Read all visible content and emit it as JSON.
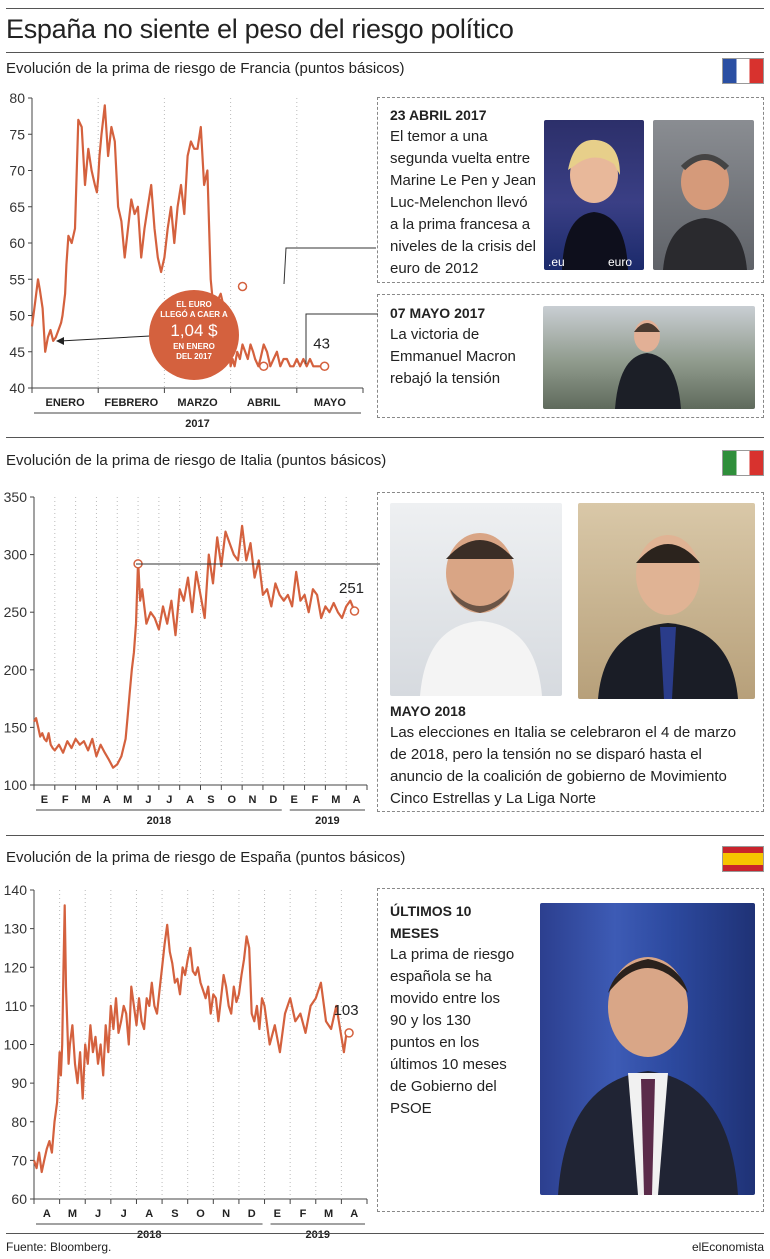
{
  "title": "España no siente el peso del riesgo político",
  "sections": [
    {
      "subtitle": "Evolución de la prima de riesgo de Francia (puntos básicos)",
      "country": "Francia",
      "annotations": [
        {
          "heading": "23 ABRIL 2017",
          "text": "El temor a una segunda vuelta entre Marine Le Pen y Jean Luc-Melenchon llevó a la prima francesa a niveles de la crisis del euro de 2012"
        },
        {
          "heading": "07 MAYO 2017",
          "text": "La victoria de Emmanuel Macron rebajó la tensión"
        }
      ],
      "callout": {
        "line1": "EL EURO",
        "line2": "LLEGÓ A CAER A",
        "value": "1,04 $",
        "line3": "EN ENERO",
        "line4": "DEL 2017"
      }
    },
    {
      "subtitle": "Evolución de la prima de riesgo de Italia (puntos  básicos)",
      "country": "Italia",
      "annotations": [
        {
          "heading": "MAYO 2018",
          "text": "Las elecciones en Italia se celebraron el 4 de marzo de 2018, pero la tensión no se disparó hasta el anuncio de la coalición de gobierno de Movimiento Cinco Estrellas y La Liga Norte"
        }
      ]
    },
    {
      "subtitle": "Evolución de la prima de riesgo de España (puntos básicos)",
      "country": "España",
      "annotations": [
        {
          "heading": "ÚLTIMOS 10 MESES",
          "text": "La prima de riesgo española se ha movido entre los 90 y los 130 puntos en los últimos 10 meses de Gobierno del PSOE"
        }
      ]
    }
  ],
  "chart_data": [
    {
      "type": "line",
      "title": "Evolución de la prima de riesgo de Francia (puntos básicos)",
      "ylim": [
        40,
        80
      ],
      "yticks": [
        40,
        45,
        50,
        55,
        60,
        65,
        70,
        75,
        80
      ],
      "xticks": [
        "ENERO",
        "FEBRERO",
        "MARZO",
        "ABRIL",
        "MAYO"
      ],
      "year_labels": [
        "2017"
      ],
      "last_value_label": "43",
      "series": [
        {
          "name": "Francia",
          "x": [
            0.0,
            0.05,
            0.09,
            0.12,
            0.16,
            0.2,
            0.24,
            0.28,
            0.32,
            0.36,
            0.4,
            0.44,
            0.46,
            0.5,
            0.52,
            0.55,
            0.6,
            0.65,
            0.7,
            0.75,
            0.8,
            0.85,
            0.9,
            0.95,
            0.98,
            1.0,
            1.02,
            1.05,
            1.1,
            1.15,
            1.2,
            1.25,
            1.3,
            1.35,
            1.4,
            1.45,
            1.5,
            1.55,
            1.6,
            1.65,
            1.7,
            1.75,
            1.8,
            1.85,
            1.9,
            1.95,
            2.0,
            2.05,
            2.1,
            2.15,
            2.2,
            2.25,
            2.3,
            2.35,
            2.4,
            2.45,
            2.5,
            2.55,
            2.6,
            2.65,
            2.7,
            2.75,
            2.8,
            2.85,
            2.9,
            2.95,
            3.0,
            3.03,
            3.06,
            3.1,
            3.14,
            3.18,
            3.22,
            3.26,
            3.3,
            3.34,
            3.37,
            3.42,
            3.45,
            3.5,
            3.55,
            3.6,
            3.65,
            3.7,
            3.75,
            3.8,
            3.85,
            3.9,
            3.95,
            4.0,
            4.05,
            4.1,
            4.15,
            4.2,
            4.25,
            4.3,
            4.35,
            4.42
          ],
          "values": [
            48.5,
            52,
            55,
            53.5,
            51,
            45,
            47,
            48,
            46.5,
            47,
            48,
            49,
            50,
            53,
            57,
            61,
            60,
            62,
            77,
            76,
            68,
            73,
            70,
            68,
            67,
            69,
            72,
            75,
            79,
            72,
            76,
            74,
            65,
            63,
            58,
            62,
            66,
            64,
            65,
            58,
            62,
            65,
            68,
            62,
            58,
            56,
            58,
            62,
            65,
            60,
            65,
            68,
            64,
            72,
            74,
            73,
            73,
            76,
            68,
            70,
            55,
            50,
            52,
            53,
            51,
            48,
            43,
            44,
            43,
            45,
            44,
            46,
            45,
            44,
            46,
            45,
            44,
            43,
            44,
            46,
            45,
            43,
            44,
            45,
            43,
            44,
            44,
            43,
            43,
            44,
            43,
            44,
            43,
            44,
            43,
            43,
            43,
            43
          ]
        }
      ]
    },
    {
      "type": "line",
      "title": "Evolución de la prima de riesgo de Italia (puntos  básicos)",
      "ylim": [
        100,
        350
      ],
      "yticks": [
        100,
        150,
        200,
        250,
        300,
        350
      ],
      "xticks": [
        "E",
        "F",
        "M",
        "A",
        "M",
        "J",
        "J",
        "A",
        "S",
        "O",
        "N",
        "D",
        "E",
        "F",
        "M",
        "A"
      ],
      "year_labels": [
        "2018",
        "2019"
      ],
      "last_value_label": "251",
      "series": [
        {
          "name": "Italia",
          "x": [
            0.0,
            0.1,
            0.2,
            0.3,
            0.4,
            0.5,
            0.6,
            0.7,
            0.8,
            0.9,
            1.0,
            1.2,
            1.4,
            1.6,
            1.8,
            2.0,
            2.2,
            2.4,
            2.6,
            2.8,
            3.0,
            3.2,
            3.4,
            3.6,
            3.8,
            4.0,
            4.2,
            4.4,
            4.5,
            4.6,
            4.7,
            4.8,
            4.9,
            5.0,
            5.1,
            5.2,
            5.4,
            5.6,
            5.8,
            6.0,
            6.2,
            6.4,
            6.6,
            6.8,
            7.0,
            7.2,
            7.4,
            7.6,
            7.8,
            8.0,
            8.2,
            8.4,
            8.6,
            8.8,
            9.0,
            9.2,
            9.4,
            9.6,
            9.8,
            10.0,
            10.2,
            10.4,
            10.6,
            10.8,
            11.0,
            11.2,
            11.4,
            11.6,
            11.8,
            12.0,
            12.2,
            12.4,
            12.6,
            12.8,
            13.0,
            13.2,
            13.4,
            13.6,
            13.8,
            14.0,
            14.2,
            14.4,
            14.6,
            14.8,
            15.0,
            15.2,
            15.4
          ],
          "values": [
            155,
            158,
            150,
            142,
            145,
            140,
            138,
            145,
            135,
            132,
            130,
            135,
            128,
            138,
            132,
            140,
            135,
            138,
            130,
            140,
            125,
            135,
            128,
            122,
            115,
            118,
            125,
            140,
            160,
            180,
            200,
            215,
            240,
            295,
            260,
            270,
            240,
            250,
            245,
            235,
            255,
            240,
            260,
            230,
            270,
            260,
            280,
            250,
            285,
            265,
            245,
            300,
            275,
            315,
            290,
            320,
            310,
            300,
            295,
            325,
            295,
            310,
            280,
            295,
            265,
            270,
            255,
            275,
            265,
            260,
            265,
            255,
            285,
            260,
            265,
            250,
            270,
            265,
            245,
            255,
            250,
            258,
            250,
            245,
            255,
            260,
            251
          ]
        }
      ]
    },
    {
      "type": "line",
      "title": "Evolución de la prima de riesgo de España (puntos básicos)",
      "ylim": [
        60,
        140
      ],
      "yticks": [
        60,
        70,
        80,
        90,
        100,
        110,
        120,
        130,
        140
      ],
      "xticks": [
        "A",
        "M",
        "J",
        "J",
        "A",
        "S",
        "O",
        "N",
        "D",
        "E",
        "F",
        "M",
        "A"
      ],
      "year_labels": [
        "2018",
        "2019"
      ],
      "last_value_label": "103",
      "series": [
        {
          "name": "España",
          "x": [
            0.0,
            0.1,
            0.2,
            0.3,
            0.4,
            0.5,
            0.6,
            0.7,
            0.8,
            0.9,
            1.0,
            1.05,
            1.1,
            1.15,
            1.2,
            1.25,
            1.3,
            1.35,
            1.4,
            1.5,
            1.6,
            1.7,
            1.8,
            1.9,
            2.0,
            2.1,
            2.2,
            2.3,
            2.4,
            2.5,
            2.6,
            2.7,
            2.8,
            2.9,
            3.0,
            3.1,
            3.2,
            3.3,
            3.4,
            3.5,
            3.6,
            3.7,
            3.8,
            3.9,
            4.0,
            4.1,
            4.2,
            4.3,
            4.4,
            4.5,
            4.6,
            4.7,
            4.8,
            4.9,
            5.0,
            5.1,
            5.2,
            5.3,
            5.4,
            5.5,
            5.6,
            5.7,
            5.8,
            5.9,
            6.0,
            6.1,
            6.2,
            6.3,
            6.4,
            6.5,
            6.6,
            6.7,
            6.8,
            6.9,
            7.0,
            7.1,
            7.2,
            7.3,
            7.4,
            7.5,
            7.6,
            7.7,
            7.8,
            7.9,
            8.0,
            8.1,
            8.2,
            8.3,
            8.4,
            8.5,
            8.6,
            8.7,
            8.8,
            8.9,
            9.0,
            9.2,
            9.4,
            9.6,
            9.8,
            10.0,
            10.2,
            10.4,
            10.6,
            10.8,
            11.0,
            11.2,
            11.4,
            11.6,
            11.8,
            12.0,
            12.1,
            12.2,
            12.3
          ],
          "values": [
            70,
            68,
            72,
            67,
            70,
            73,
            75,
            72,
            80,
            85,
            98,
            92,
            100,
            120,
            136,
            115,
            105,
            95,
            100,
            105,
            95,
            90,
            98,
            86,
            100,
            95,
            105,
            98,
            102,
            95,
            100,
            92,
            105,
            98,
            110,
            104,
            112,
            103,
            106,
            110,
            108,
            100,
            115,
            110,
            105,
            112,
            106,
            104,
            112,
            110,
            116,
            110,
            108,
            114,
            120,
            126,
            131,
            124,
            121,
            116,
            117,
            113,
            120,
            118,
            122,
            125,
            119,
            118,
            120,
            116,
            114,
            112,
            115,
            108,
            113,
            112,
            106,
            112,
            118,
            115,
            110,
            108,
            115,
            111,
            113,
            118,
            122,
            128,
            125,
            108,
            106,
            110,
            104,
            112,
            110,
            100,
            105,
            98,
            108,
            112,
            106,
            108,
            103,
            110,
            112,
            116,
            106,
            104,
            110,
            102,
            98,
            103,
            103
          ]
        }
      ]
    }
  ],
  "footer": {
    "source": "Fuente: Bloomberg.",
    "brand": "elEconomista"
  }
}
